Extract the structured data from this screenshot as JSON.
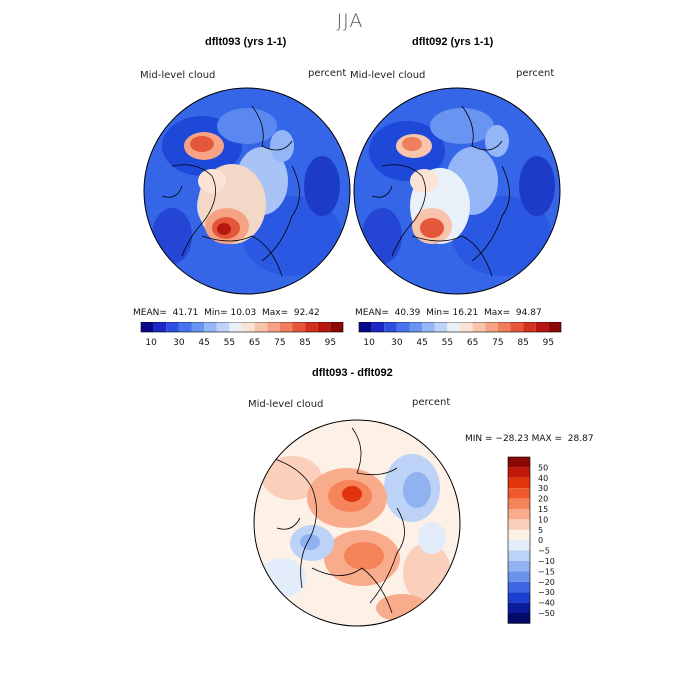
{
  "season_title": "JJA",
  "panels": [
    {
      "title": "dflt093 (yrs 1-1)",
      "variable": "Mid-level cloud",
      "units": "percent",
      "stats": {
        "mean_label": "MEAN=",
        "mean": "41.71",
        "min_label": "Min=",
        "min": "10.03",
        "max_label": "Max=",
        "max": "92.42"
      }
    },
    {
      "title": "dflt092 (yrs 1-1)",
      "variable": "Mid-level cloud",
      "units": "percent",
      "stats": {
        "mean_label": "MEAN=",
        "mean": "40.39",
        "min_label": "Min=",
        "min": "16.21",
        "max_label": "Max=",
        "max": "94.87"
      }
    }
  ],
  "field_colorbar": {
    "tick_labels": [
      "10",
      "30",
      "45",
      "55",
      "65",
      "75",
      "85",
      "95"
    ],
    "colors": [
      "#08088a",
      "#1c28c8",
      "#2e50e0",
      "#4674ec",
      "#6a94f2",
      "#94b6f6",
      "#c0d4f8",
      "#eaf0fa",
      "#fbe4d6",
      "#f9c4ac",
      "#f5a384",
      "#ef7f5c",
      "#e5573a",
      "#d4301e",
      "#b81610",
      "#8c0804"
    ]
  },
  "difference_panel": {
    "title": "dflt093 - dflt092",
    "variable": "Mid-level cloud",
    "units": "percent",
    "stats": "MIN = −28.23 MAX =  28.87"
  },
  "diff_colorbar": {
    "tick_labels": [
      "50",
      "40",
      "30",
      "20",
      "15",
      "10",
      "5",
      "0",
      "−5",
      "−10",
      "−15",
      "−20",
      "−30",
      "−40",
      "−50"
    ],
    "colors": [
      "#8c0804",
      "#c01808",
      "#e0340c",
      "#f05a2c",
      "#f5845a",
      "#f8ac8c",
      "#fad0bc",
      "#fdf0e6",
      "#e2ecfa",
      "#bcd2f6",
      "#90b2f0",
      "#6a92ea",
      "#3e66e2",
      "#1a3ed0",
      "#0a1c9c",
      "#040a66"
    ]
  }
}
